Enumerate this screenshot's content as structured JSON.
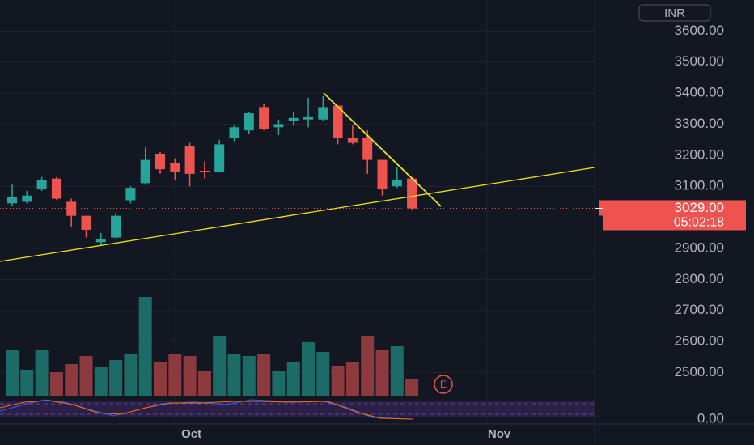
{
  "chart_data": {
    "type": "candlestick",
    "currency": "INR",
    "categories": [
      null,
      null,
      null,
      null,
      null,
      null,
      null,
      null,
      null,
      null,
      null,
      null,
      "Oct",
      null,
      null,
      null,
      null,
      null,
      null,
      null,
      null,
      null,
      null,
      null,
      null,
      null,
      null,
      null
    ],
    "next_month_label": "Nov",
    "open": [
      3045,
      3050,
      3090,
      3125,
      3050,
      3005,
      2920,
      2935,
      3055,
      3110,
      3205,
      3175,
      3230,
      3150,
      3145,
      3255,
      3280,
      3355,
      3290,
      3310,
      3315,
      3315,
      3360,
      3255,
      3255,
      3185,
      3100,
      3125
    ],
    "high": [
      3105,
      3085,
      3130,
      3130,
      3060,
      3005,
      2950,
      3015,
      3100,
      3225,
      3210,
      3190,
      3240,
      3180,
      3250,
      3295,
      3340,
      3365,
      3315,
      3340,
      3385,
      3390,
      3360,
      3295,
      3280,
      3185,
      3160,
      3130
    ],
    "low": [
      3035,
      3045,
      3085,
      3055,
      2970,
      2935,
      2910,
      2930,
      3045,
      3105,
      3140,
      3120,
      3100,
      3125,
      3145,
      3245,
      3270,
      3280,
      3265,
      3295,
      3290,
      3310,
      3235,
      3235,
      3140,
      3070,
      3095,
      3025
    ],
    "close": [
      3065,
      3070,
      3120,
      3060,
      3005,
      2960,
      2930,
      3005,
      3095,
      3185,
      3155,
      3145,
      3140,
      3145,
      3235,
      3290,
      3335,
      3285,
      3300,
      3320,
      3325,
      3355,
      3255,
      3240,
      3185,
      3090,
      3120,
      3029
    ],
    "volume": [
      58,
      33,
      58,
      30,
      40,
      50,
      37,
      45,
      52,
      123,
      43,
      53,
      50,
      32,
      75,
      52,
      50,
      53,
      32,
      43,
      67,
      55,
      38,
      43,
      75,
      58,
      62,
      22
    ],
    "up_color": "#26a69a",
    "down_color": "#ef5350",
    "volume_up_color": "#1c6b66",
    "volume_down_color": "#8c3a3d",
    "ylim": [
      2410,
      3700
    ],
    "yticks": [
      {
        "value": 2500,
        "label": "2500.00"
      },
      {
        "value": 2600,
        "label": "2600.00"
      },
      {
        "value": 2700,
        "label": "2700.00"
      },
      {
        "value": 2800,
        "label": "2800.00"
      },
      {
        "value": 2900,
        "label": "2900.00"
      },
      {
        "value": 3100,
        "label": "3100.00"
      },
      {
        "value": 3200,
        "label": "3200.00"
      },
      {
        "value": 3300,
        "label": "3300.00"
      },
      {
        "value": 3400,
        "label": "3400.00"
      },
      {
        "value": 3500,
        "label": "3500.00"
      },
      {
        "value": 3600,
        "label": "3600.00"
      }
    ],
    "last_price": {
      "value": 3029,
      "label": "3029.00"
    },
    "countdown": "05:02:18",
    "earnings_marker": "E",
    "indicator_axis_label": "0.00",
    "grid": true
  }
}
